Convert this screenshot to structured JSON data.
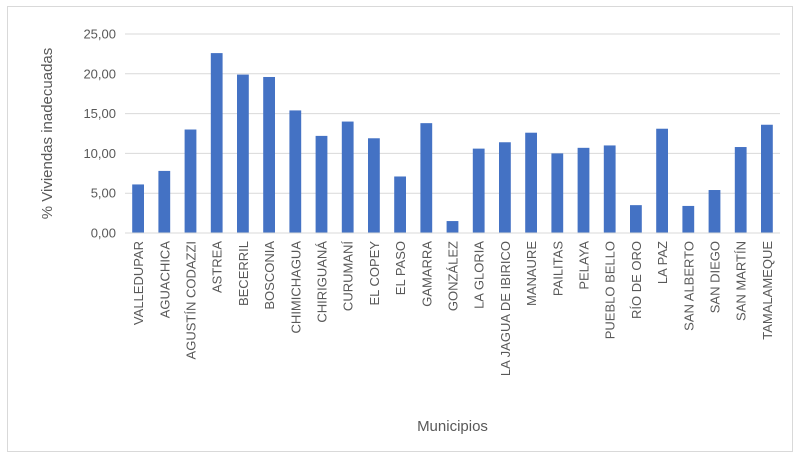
{
  "chart_data": {
    "type": "bar",
    "title": "",
    "xlabel": "Municipios",
    "ylabel": "% Viviendas inadecuadas",
    "ylim": [
      0,
      25
    ],
    "yticks": [
      "0,00",
      "5,00",
      "10,00",
      "15,00",
      "20,00",
      "25,00"
    ],
    "ytick_values": [
      0,
      5,
      10,
      15,
      20,
      25
    ],
    "grid": true,
    "legend": "none",
    "bar_color": "#4472C4",
    "categories": [
      "VALLEDUPAR",
      "AGUACHICA",
      "AGUSTÍN CODAZZI",
      "ASTREA",
      "BECERRIL",
      "BOSCONIA",
      "CHIMICHAGUA",
      "CHIRIGUANÁ",
      "CURUMANÍ",
      "EL COPEY",
      "EL PASO",
      "GAMARRA",
      "GONZÁLEZ",
      "LA GLORIA",
      "LA JAGUA DE IBIRICO",
      "MANAURE",
      "PAILITAS",
      "PELAYA",
      "PUEBLO BELLO",
      "RÍO DE ORO",
      "LA PAZ",
      "SAN ALBERTO",
      "SAN DIEGO",
      "SAN MARTÍN",
      "TAMALAMEQUE"
    ],
    "values": [
      6.1,
      7.8,
      13.0,
      22.6,
      19.9,
      19.6,
      15.4,
      12.2,
      14.0,
      11.9,
      7.1,
      13.8,
      1.5,
      10.6,
      11.4,
      12.6,
      10.0,
      10.7,
      11.0,
      3.5,
      13.1,
      3.4,
      5.4,
      10.8,
      13.6
    ]
  }
}
